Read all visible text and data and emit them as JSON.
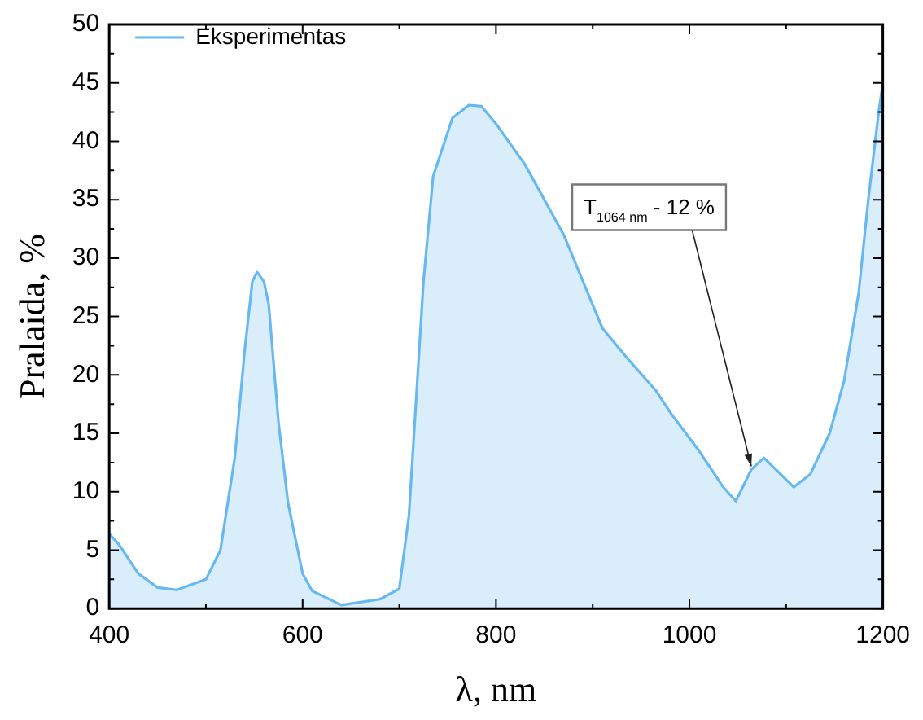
{
  "chart_data": {
    "type": "area",
    "xlabel": "λ, nm",
    "ylabel": "Pralaida, %",
    "xlim": [
      400,
      1200
    ],
    "xticks": [
      400,
      600,
      800,
      1000,
      1200
    ],
    "ylim": [
      0,
      50
    ],
    "yticks": [
      0,
      5,
      10,
      15,
      20,
      25,
      30,
      35,
      40,
      45,
      50
    ],
    "grid": false,
    "legend": "top left",
    "line_style": "solid",
    "marker": "none",
    "x": [
      400,
      410,
      430,
      450,
      470,
      500,
      515,
      530,
      540,
      548,
      553,
      560,
      565,
      575,
      585,
      600,
      610,
      640,
      680,
      700,
      710,
      725,
      735,
      755,
      772,
      785,
      800,
      830,
      860,
      870,
      890,
      910,
      935,
      965,
      980,
      1010,
      1035,
      1048,
      1064,
      1077,
      1108,
      1125,
      1145,
      1160,
      1175,
      1185,
      1195,
      1200
    ],
    "series": [
      {
        "name": "Eksperimentas",
        "color": "#66b8f0",
        "values": [
          6.4,
          5.5,
          3,
          1.8,
          1.6,
          2.5,
          5,
          13,
          22,
          28,
          28.8,
          28,
          26,
          16,
          9,
          3,
          1.5,
          0.3,
          0.8,
          1.7,
          8,
          28,
          37,
          42,
          43.1,
          43,
          41.5,
          38,
          33.5,
          32,
          28,
          24,
          21.5,
          18.7,
          16.8,
          13.5,
          10.4,
          9.2,
          11.9,
          12.9,
          10.4,
          11.5,
          15,
          19.5,
          27,
          35,
          42,
          45
        ]
      }
    ],
    "annotations": [
      {
        "text": "T$_{1064 nm}$ - 12 %",
        "x": 1064,
        "y": 11.9
      }
    ]
  }
}
